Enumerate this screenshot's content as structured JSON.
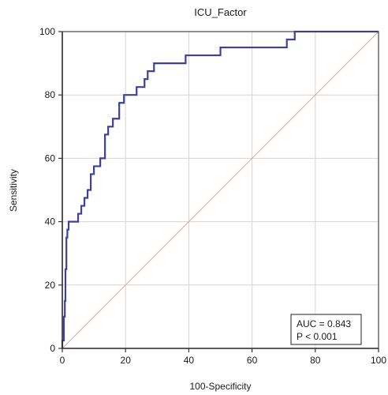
{
  "chart_data": {
    "type": "line",
    "title": "ICU_Factor",
    "xlabel": "100-Specificity",
    "ylabel": "Sensitivity",
    "xlim": [
      0,
      100
    ],
    "ylim": [
      0,
      100
    ],
    "xticks": [
      "0",
      "20",
      "40",
      "60",
      "80",
      "100"
    ],
    "yticks": [
      "0",
      "20",
      "40",
      "60",
      "80",
      "100"
    ],
    "grid": true,
    "series": [
      {
        "kind": "step",
        "color": "#3f3f9c",
        "x": [
          0,
          0,
          0.5,
          0.5,
          0.8,
          0.8,
          1.0,
          1.0,
          1.3,
          1.3,
          1.6,
          1.6,
          2.0,
          2.0,
          5.0,
          5.0,
          6.0,
          6.0,
          7.0,
          7.0,
          8.0,
          8.0,
          9.0,
          9.0,
          10.0,
          10.0,
          12.0,
          12.0,
          13.5,
          13.5,
          14.5,
          14.5,
          16.0,
          16.0,
          18.0,
          18.0,
          19.5,
          19.5,
          23.5,
          23.5,
          26.0,
          26.0,
          27.0,
          27.0,
          29.0,
          29.0,
          39.0,
          39.0,
          50.0,
          50.0,
          71.0,
          71.0,
          73.5,
          73.5,
          90.0,
          90.0,
          100.0
        ],
        "y": [
          0,
          2.5,
          2.5,
          10,
          10,
          15,
          15,
          25,
          25,
          35,
          35,
          37.5,
          37.5,
          40,
          40,
          42.5,
          42.5,
          45,
          45,
          47.5,
          47.5,
          50,
          50,
          55,
          55,
          57.5,
          57.5,
          60,
          60,
          67.5,
          67.5,
          70,
          70,
          72.5,
          72.5,
          77.5,
          77.5,
          80,
          80,
          82.5,
          82.5,
          85,
          85,
          87.5,
          87.5,
          90,
          90,
          92.5,
          92.5,
          95,
          95,
          97.5,
          97.5,
          100,
          100,
          100,
          100
        ]
      },
      {
        "kind": "reference",
        "color": "#e0a0a0",
        "x": [
          0,
          100
        ],
        "y": [
          0,
          100
        ]
      }
    ],
    "annotation": {
      "lines": [
        "AUC = 0.843",
        "P < 0.001"
      ],
      "placement": "bottom-right"
    }
  }
}
